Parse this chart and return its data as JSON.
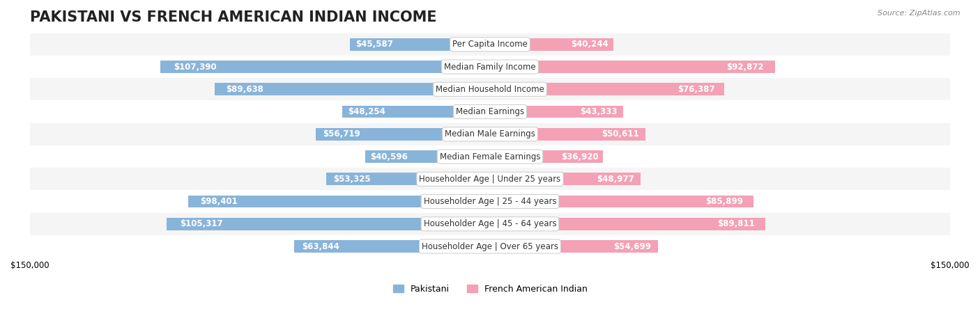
{
  "title": "PAKISTANI VS FRENCH AMERICAN INDIAN INCOME",
  "source": "Source: ZipAtlas.com",
  "categories": [
    "Per Capita Income",
    "Median Family Income",
    "Median Household Income",
    "Median Earnings",
    "Median Male Earnings",
    "Median Female Earnings",
    "Householder Age | Under 25 years",
    "Householder Age | 25 - 44 years",
    "Householder Age | 45 - 64 years",
    "Householder Age | Over 65 years"
  ],
  "pakistani_values": [
    45587,
    107390,
    89638,
    48254,
    56719,
    40596,
    53325,
    98401,
    105317,
    63844
  ],
  "french_indian_values": [
    40244,
    92872,
    76387,
    43333,
    50611,
    36920,
    48977,
    85899,
    89811,
    54699
  ],
  "pakistani_labels": [
    "$45,587",
    "$107,390",
    "$89,638",
    "$48,254",
    "$56,719",
    "$40,596",
    "$53,325",
    "$98,401",
    "$105,317",
    "$63,844"
  ],
  "french_labels": [
    "$40,244",
    "$92,872",
    "$76,387",
    "$43,333",
    "$50,611",
    "$36,920",
    "$48,977",
    "$85,899",
    "$89,811",
    "$54,699"
  ],
  "pakistani_color": "#89b4d9",
  "french_color": "#f4a0b5",
  "pakistani_color_dark": "#5a9ec9",
  "french_color_dark": "#e8688a",
  "bar_height": 0.55,
  "xlim": 150000,
  "background_color": "#ffffff",
  "row_bg_odd": "#f5f5f5",
  "row_bg_even": "#ffffff",
  "title_fontsize": 15,
  "label_fontsize": 8.5,
  "category_fontsize": 8.5,
  "axis_fontsize": 8.5,
  "legend_fontsize": 9
}
